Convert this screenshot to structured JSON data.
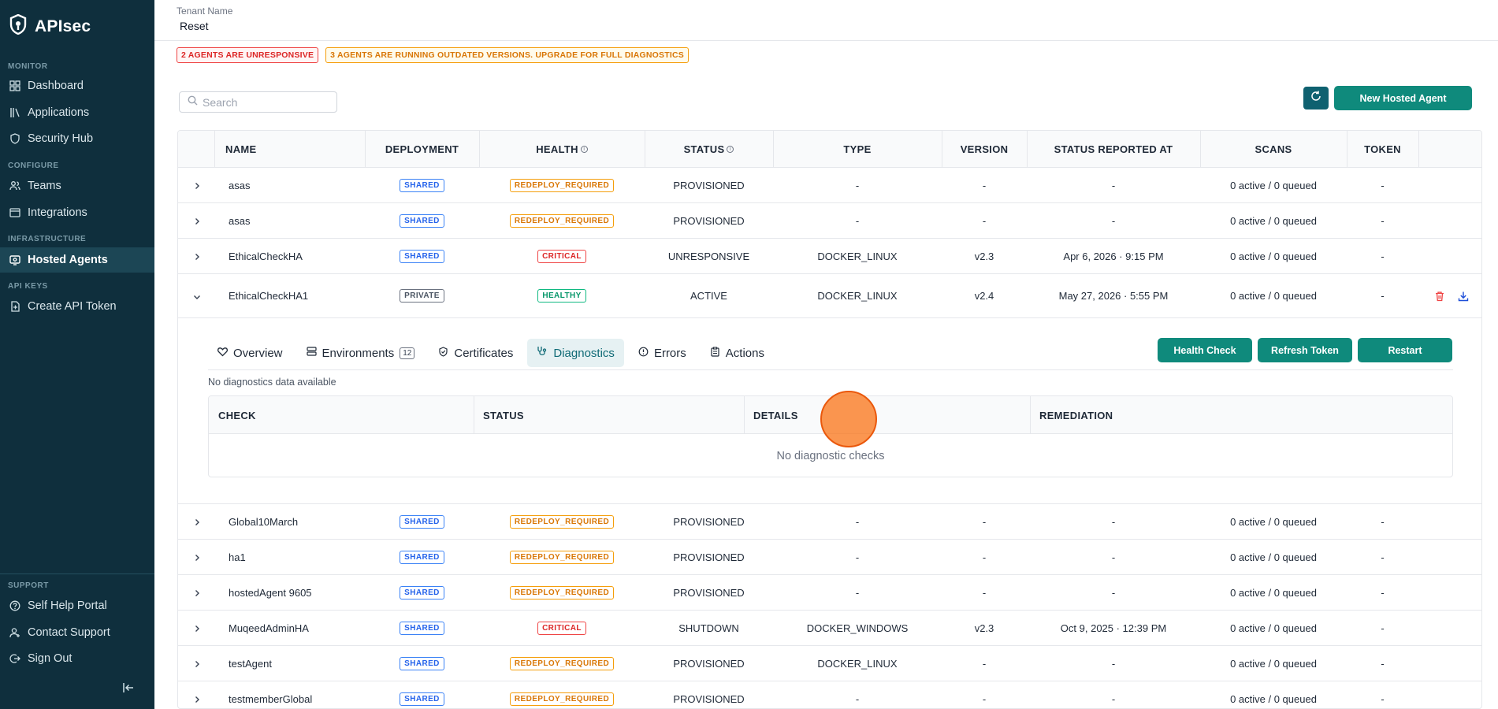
{
  "sidebar": {
    "brand": "APIsec",
    "sections": [
      {
        "label": "MONITOR",
        "items": [
          {
            "label": "Dashboard",
            "icon": "grid-icon"
          },
          {
            "label": "Applications",
            "icon": "books-icon"
          },
          {
            "label": "Security Hub",
            "icon": "shield-icon"
          }
        ]
      },
      {
        "label": "CONFIGURE",
        "items": [
          {
            "label": "Teams",
            "icon": "users-icon"
          },
          {
            "label": "Integrations",
            "icon": "window-icon"
          }
        ]
      },
      {
        "label": "INFRASTRUCTURE",
        "items": [
          {
            "label": "Hosted Agents",
            "icon": "agent-icon",
            "active": true
          }
        ]
      },
      {
        "label": "API KEYS",
        "items": [
          {
            "label": "Create API Token",
            "icon": "token-icon"
          }
        ]
      },
      {
        "label": "SUPPORT",
        "items": [
          {
            "label": "Self Help Portal",
            "icon": "help-icon"
          },
          {
            "label": "Contact Support",
            "icon": "contact-icon"
          },
          {
            "label": "Sign Out",
            "icon": "signout-icon"
          }
        ]
      }
    ]
  },
  "header": {
    "tenant_label": "Tenant Name",
    "tenant_value": "Reset"
  },
  "alerts": {
    "unresponsive": "2 AGENTS ARE UNRESPONSIVE",
    "outdated": "3 AGENTS ARE RUNNING OUTDATED VERSIONS. UPGRADE FOR FULL DIAGNOSTICS"
  },
  "search": {
    "placeholder": "Search"
  },
  "toolbar": {
    "new_agent_label": "New Hosted Agent"
  },
  "table": {
    "columns": [
      "NAME",
      "DEPLOYMENT",
      "HEALTH",
      "STATUS",
      "TYPE",
      "VERSION",
      "STATUS REPORTED AT",
      "SCANS",
      "TOKEN"
    ],
    "rows": [
      {
        "name": "asas",
        "deployment": "SHARED",
        "health": "REDEPLOY_REQUIRED",
        "status": "PROVISIONED",
        "type": "-",
        "version": "-",
        "reported": "-",
        "scans": "0 active / 0 queued",
        "token": "-"
      },
      {
        "name": "asas",
        "deployment": "SHARED",
        "health": "REDEPLOY_REQUIRED",
        "status": "PROVISIONED",
        "type": "-",
        "version": "-",
        "reported": "-",
        "scans": "0 active / 0 queued",
        "token": "-"
      },
      {
        "name": "EthicalCheckHA",
        "deployment": "SHARED",
        "health": "CRITICAL",
        "status": "UNRESPONSIVE",
        "type": "DOCKER_LINUX",
        "version": "v2.3",
        "reported": "Apr 6, 2026 · 9:15 PM",
        "scans": "0 active / 0 queued",
        "token": "-"
      },
      {
        "name": "EthicalCheckHA1",
        "deployment": "PRIVATE",
        "health": "HEALTHY",
        "status": "ACTIVE",
        "type": "DOCKER_LINUX",
        "version": "v2.4",
        "reported": "May 27, 2026 · 5:55 PM",
        "scans": "0 active / 0 queued",
        "token": "-",
        "expanded": true
      },
      {
        "name": "Global10March",
        "deployment": "SHARED",
        "health": "REDEPLOY_REQUIRED",
        "status": "PROVISIONED",
        "type": "-",
        "version": "-",
        "reported": "-",
        "scans": "0 active / 0 queued",
        "token": "-"
      },
      {
        "name": "ha1",
        "deployment": "SHARED",
        "health": "REDEPLOY_REQUIRED",
        "status": "PROVISIONED",
        "type": "-",
        "version": "-",
        "reported": "-",
        "scans": "0 active / 0 queued",
        "token": "-"
      },
      {
        "name": "hostedAgent 9605",
        "deployment": "SHARED",
        "health": "REDEPLOY_REQUIRED",
        "status": "PROVISIONED",
        "type": "-",
        "version": "-",
        "reported": "-",
        "scans": "0 active / 0 queued",
        "token": "-"
      },
      {
        "name": "MuqeedAdminHA",
        "deployment": "SHARED",
        "health": "CRITICAL",
        "status": "SHUTDOWN",
        "type": "DOCKER_WINDOWS",
        "version": "v2.3",
        "reported": "Oct 9, 2025 · 12:39 PM",
        "scans": "0 active / 0 queued",
        "token": "-"
      },
      {
        "name": "testAgent",
        "deployment": "SHARED",
        "health": "REDEPLOY_REQUIRED",
        "status": "PROVISIONED",
        "type": "DOCKER_LINUX",
        "version": "-",
        "reported": "-",
        "scans": "0 active / 0 queued",
        "token": "-"
      },
      {
        "name": "testmemberGlobal",
        "deployment": "SHARED",
        "health": "REDEPLOY_REQUIRED",
        "status": "PROVISIONED",
        "type": "-",
        "version": "-",
        "reported": "-",
        "scans": "0 active / 0 queued",
        "token": "-"
      }
    ]
  },
  "detail": {
    "tabs": [
      {
        "label": "Overview",
        "icon": "heart-icon"
      },
      {
        "label": "Environments",
        "icon": "server-icon",
        "count": "12"
      },
      {
        "label": "Certificates",
        "icon": "certificate-icon"
      },
      {
        "label": "Diagnostics",
        "icon": "stethoscope-icon",
        "active": true
      },
      {
        "label": "Errors",
        "icon": "error-icon"
      },
      {
        "label": "Actions",
        "icon": "clipboard-icon"
      }
    ],
    "buttons": {
      "health_check": "Health Check",
      "refresh_token": "Refresh Token",
      "restart": "Restart"
    },
    "no_data": "No diagnostics data available",
    "columns": [
      "CHECK",
      "STATUS",
      "DETAILS",
      "REMEDIATION"
    ],
    "empty": "No diagnostic checks"
  },
  "colors": {
    "sidebar_bg": "#0f2f3d",
    "primary": "#0f8a7c",
    "critical": "#dc2626",
    "warning": "#d97706",
    "healthy": "#059669",
    "shared": "#2563eb"
  }
}
